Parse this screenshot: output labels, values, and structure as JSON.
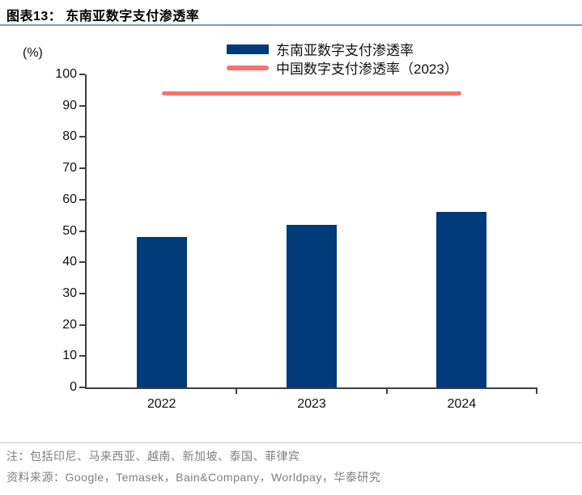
{
  "header": {
    "title": "图表13：  东南亚数字支付渗透率"
  },
  "chart_data": {
    "type": "bar",
    "title": "东南亚数字支付渗透率",
    "unit_label": "(%)",
    "categories": [
      "2022",
      "2023",
      "2024"
    ],
    "series": [
      {
        "name": "东南亚数字支付渗透率",
        "type": "bar",
        "values": [
          48,
          52,
          56
        ],
        "color": "#003a78"
      },
      {
        "name": "中国数字支付渗透率（2023）",
        "type": "line",
        "values": [
          94,
          94,
          94
        ],
        "color": "#f8736c"
      }
    ],
    "ylim": [
      0,
      100
    ],
    "ytick_step": 10,
    "grid": false,
    "legend_position": "top-center"
  },
  "footer": {
    "note": "注：包括印尼、马来西亚、越南、新加坡、泰国、菲律宾",
    "source": "资料来源：Google，Temasek，Bain&Company，Worldpay，华泰研究"
  },
  "colors": {
    "bar": "#003a78",
    "china_line": "#f8736c",
    "header_rule": "#7f97c1",
    "footer_rule": "#c9c9c9",
    "note_text": "#7f7f7f",
    "axis": "#3f3f3f"
  }
}
